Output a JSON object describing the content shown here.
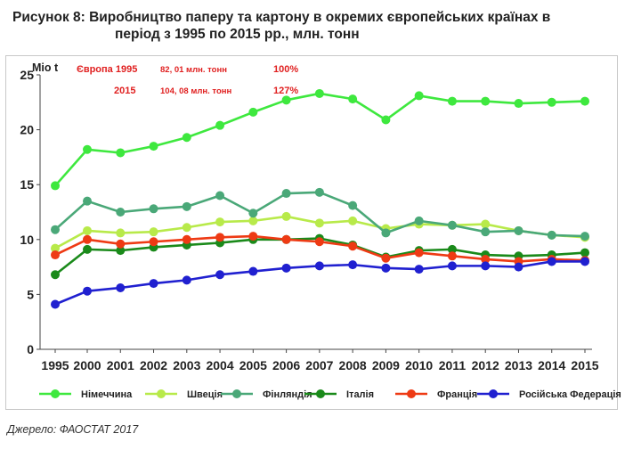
{
  "caption": {
    "line1": "Рисунок 8: Виробництво паперу та картону в окремих європейських країнах в",
    "line2": "період з 1995 по 2015 рр., млн. тонн"
  },
  "source": "Джерело: ФАОСТАТ 2017",
  "colors": {
    "germany": "#3ee83e",
    "sweden": "#b8ea4a",
    "finland": "#4aa878",
    "italy": "#1a8a1a",
    "france": "#ee3a14",
    "russia": "#2020d0",
    "annotation": "#e02020"
  },
  "chart_data": {
    "type": "line",
    "title": "",
    "xlabel": "",
    "ylabel": "Mio t",
    "ylim": [
      0,
      25
    ],
    "yticks": [
      0,
      5,
      10,
      15,
      20,
      25
    ],
    "grid": false,
    "legend_position": "bottom",
    "categories": [
      "1995",
      "2000",
      "2001",
      "2002",
      "2003",
      "2004",
      "2005",
      "2006",
      "2007",
      "2008",
      "2009",
      "2010",
      "2011",
      "2012",
      "2013",
      "2014",
      "2015"
    ],
    "series": [
      {
        "name": "Німеччина",
        "key": "germany",
        "values": [
          14.9,
          18.2,
          17.9,
          18.5,
          19.3,
          20.4,
          21.6,
          22.7,
          23.3,
          22.8,
          20.9,
          23.1,
          22.6,
          22.6,
          22.4,
          22.5,
          22.6
        ]
      },
      {
        "name": "Швеція",
        "key": "sweden",
        "values": [
          9.2,
          10.8,
          10.6,
          10.7,
          11.1,
          11.6,
          11.7,
          12.1,
          11.5,
          11.7,
          11.0,
          11.4,
          11.3,
          11.4,
          10.8,
          10.4,
          10.2
        ]
      },
      {
        "name": "Фінляндія",
        "key": "finland",
        "values": [
          10.9,
          13.5,
          12.5,
          12.8,
          13.0,
          14.0,
          12.4,
          14.2,
          14.3,
          13.1,
          10.6,
          11.7,
          11.3,
          10.7,
          10.8,
          10.4,
          10.3
        ]
      },
      {
        "name": "Італія",
        "key": "italy",
        "values": [
          6.8,
          9.1,
          9.0,
          9.3,
          9.5,
          9.7,
          10.0,
          10.0,
          10.1,
          9.5,
          8.4,
          9.0,
          9.1,
          8.6,
          8.5,
          8.6,
          8.8
        ]
      },
      {
        "name": "Франція",
        "key": "france",
        "values": [
          8.6,
          10.0,
          9.6,
          9.8,
          10.0,
          10.2,
          10.3,
          10.0,
          9.8,
          9.4,
          8.3,
          8.8,
          8.5,
          8.2,
          8.0,
          8.2,
          8.1
        ]
      },
      {
        "name": "Російська Федерація",
        "key": "russia",
        "values": [
          4.1,
          5.3,
          5.6,
          6.0,
          6.3,
          6.8,
          7.1,
          7.4,
          7.6,
          7.7,
          7.4,
          7.3,
          7.6,
          7.6,
          7.5,
          8.0,
          8.0
        ]
      }
    ],
    "annotations": [
      {
        "label": "Європа 1995",
        "value": "82, 01 млн. тонн",
        "percent": "100%"
      },
      {
        "label": "2015",
        "value": "104, 08 млн. тонн",
        "percent": "127%"
      }
    ]
  }
}
